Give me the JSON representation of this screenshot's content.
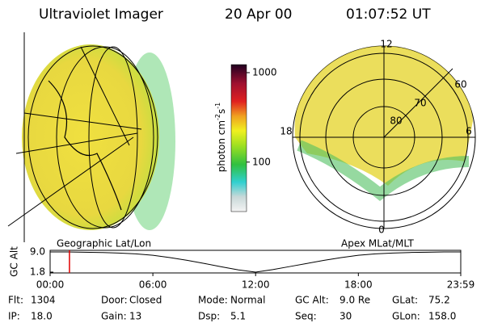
{
  "header": {
    "title": "Ultraviolet Imager",
    "date": "20 Apr 00",
    "time": "01:07:52 UT"
  },
  "colorbar": {
    "label_parts": [
      "photon cm",
      "-2",
      "s",
      "-1"
    ],
    "lim": [
      28,
      1230
    ],
    "log": true,
    "ticks": [
      100,
      1000
    ]
  },
  "globe": {
    "label": "Geographic Lat/Lon"
  },
  "polar": {
    "label": "Apex MLat/MLT",
    "mlt_labels": [
      "12",
      "18",
      "6",
      "0"
    ],
    "mlat_labels": [
      "60",
      "70",
      "80"
    ]
  },
  "chart_data": {
    "type": "line",
    "ylabel": "GC Alt",
    "x": [
      0,
      1,
      2,
      3,
      4,
      5,
      6,
      7,
      8,
      9,
      10,
      11,
      12,
      13,
      14,
      15,
      16,
      17,
      18,
      19,
      20,
      21,
      22,
      23,
      24
    ],
    "values": [
      9.0,
      9.0,
      8.9,
      8.8,
      8.6,
      8.3,
      7.8,
      7.0,
      6.0,
      4.9,
      3.7,
      2.6,
      1.8,
      2.7,
      3.8,
      4.9,
      6.0,
      7.0,
      7.8,
      8.3,
      8.6,
      8.8,
      8.9,
      9.0,
      9.0
    ],
    "color": "#000000",
    "xlim": [
      0,
      23.98
    ],
    "xticks": [
      {
        "value": 0,
        "label": "00:00"
      },
      {
        "value": 6,
        "label": "06:00"
      },
      {
        "value": 12,
        "label": "12:00"
      },
      {
        "value": 18,
        "label": "18:00"
      },
      {
        "value": 23.98,
        "label": "23:59"
      }
    ],
    "ylim": [
      1.8,
      9.0
    ],
    "yticks": [
      {
        "value": 9.0,
        "label": "9.0"
      },
      {
        "value": 1.8,
        "label": "1.8"
      }
    ],
    "marker_x": 1.13,
    "marker_color": "#e00000"
  },
  "footer": {
    "items": [
      {
        "label": "Flt:",
        "value": "1304"
      },
      {
        "label": "Door:",
        "value": "Closed"
      },
      {
        "label": "Mode:",
        "value": "Normal"
      },
      {
        "label": "GC Alt:",
        "value": "9.0 Re"
      },
      {
        "label": "GLat:",
        "value": "75.2"
      },
      {
        "label": "IP:",
        "value": "18.0"
      },
      {
        "label": "Gain:",
        "value": "13"
      },
      {
        "label": "Dsp:",
        "value": "5.1"
      },
      {
        "label": "Seq:",
        "value": "30"
      },
      {
        "label": "GLon:",
        "value": "158.0"
      }
    ]
  }
}
